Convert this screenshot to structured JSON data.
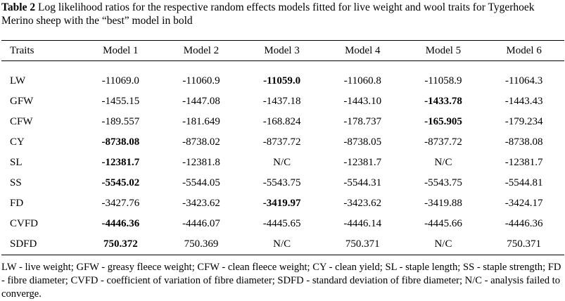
{
  "table": {
    "caption_label": "Table 2",
    "caption": "Log likelihood ratios for the respective random effects models fitted for live weight and wool traits for Tygerhoek Merino sheep with the “best” model in bold",
    "header": [
      "Traits",
      "Model 1",
      "Model 2",
      "Model 3",
      "Model 4",
      "Model 5",
      "Model 6"
    ],
    "rows": [
      [
        "LW",
        "-11069.0",
        "-11060.9",
        "-11059.0",
        "-11060.8",
        "-11058.9",
        "-11064.3"
      ],
      [
        "GFW",
        "-1455.15",
        "-1447.08",
        "-1437.18",
        "-1443.10",
        "-1433.78",
        "-1443.43"
      ],
      [
        "CFW",
        "-189.557",
        "-181.649",
        "-168.824",
        "-178.737",
        "-165.905",
        "-179.234"
      ],
      [
        "CY",
        "-8738.08",
        "-8738.02",
        "-8737.72",
        "-8738.05",
        "-8737.72",
        "-8738.08"
      ],
      [
        "SL",
        "-12381.7",
        "-12381.8",
        "N/C",
        "-12381.7",
        "N/C",
        "-12381.7"
      ],
      [
        "SS",
        "-5545.02",
        "-5544.05",
        "-5543.75",
        "-5544.31",
        "-5543.75",
        "-5544.81"
      ],
      [
        "FD",
        "-3427.76",
        "-3423.62",
        "-3419.97",
        "-3423.62",
        "-3419.88",
        "-3424.17"
      ],
      [
        "CVFD",
        "-4446.36",
        "-4446.07",
        "-4445.65",
        "-4446.14",
        "-4445.66",
        "-4446.36"
      ],
      [
        "SDFD",
        "750.372",
        "750.369",
        "N/C",
        "750.371",
        "N/C",
        "750.371"
      ]
    ],
    "bold": [
      3,
      5,
      5,
      1,
      1,
      1,
      3,
      1,
      1
    ],
    "footnote": "LW - live weight; GFW - greasy fleece weight; CFW - clean fleece weight; CY - clean yield; SL - staple length; SS - staple strength; FD - fibre diameter; CVFD - coefficient of variation of fibre diameter; SDFD - standard deviation of fibre diameter; N/C - analysis failed to converge."
  }
}
